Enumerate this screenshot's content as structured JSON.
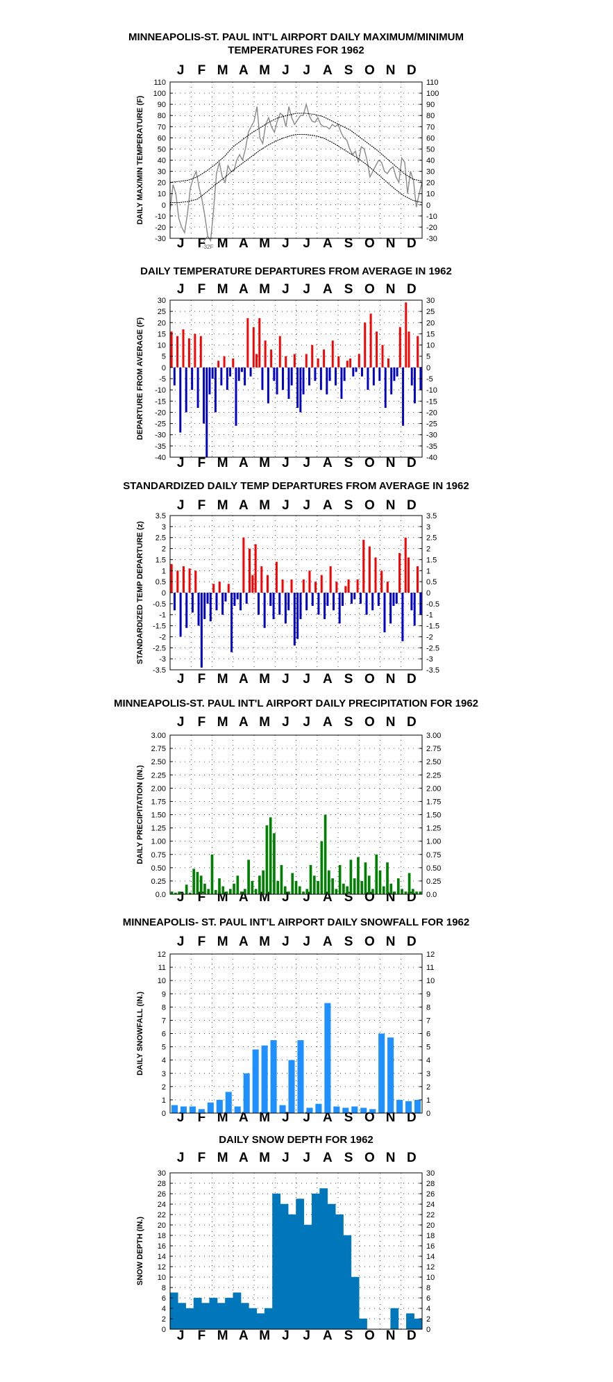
{
  "months": [
    "J",
    "F",
    "M",
    "A",
    "M",
    "J",
    "J",
    "A",
    "S",
    "O",
    "N",
    "D"
  ],
  "chart_data": [
    {
      "type": "line",
      "title_lines": [
        "MINNEAPOLIS-ST. PAUL INT'L AIRPORT DAILY MAXIMUM/MINIMUM",
        "TEMPERATURES FOR 1962"
      ],
      "ylabel": "DAILY MAX/MIN TEMPERATURE (F)",
      "ylim": [
        -30,
        110
      ],
      "yticks": [
        -30,
        -20,
        -10,
        0,
        10,
        20,
        30,
        40,
        50,
        60,
        70,
        80,
        90,
        100,
        110
      ],
      "annotation": "-32F",
      "series": [
        {
          "name": "",
          "values": [
            -5,
            18,
            10,
            -12,
            -20,
            -25,
            -8,
            15,
            24,
            30,
            16,
            5,
            -10,
            -28,
            -32,
            -5,
            28,
            38,
            25,
            20,
            35,
            30,
            30,
            40,
            45,
            40,
            50,
            65,
            70,
            75,
            88,
            60,
            55,
            72,
            78,
            70,
            65,
            75,
            82,
            80,
            70,
            88,
            78,
            72,
            76,
            80,
            80,
            90,
            80,
            75,
            74,
            78,
            72,
            70,
            70,
            68,
            72,
            70,
            72,
            65,
            60,
            58,
            50,
            45,
            48,
            38,
            52,
            50,
            40,
            25,
            30,
            35,
            40,
            38,
            30,
            28,
            32,
            34,
            25,
            20,
            42,
            38,
            10,
            30,
            22,
            -2,
            10,
            20
          ]
        },
        {
          "name": "normal-max",
          "values": [
            20,
            21,
            22,
            25,
            30,
            36,
            43,
            52,
            58,
            64,
            69,
            74,
            78,
            80,
            82,
            82,
            81,
            79,
            75,
            71,
            67,
            61,
            55,
            49,
            42,
            35,
            28,
            23,
            21
          ]
        },
        {
          "name": "normal-min",
          "values": [
            2,
            2,
            3,
            5,
            11,
            18,
            24,
            31,
            37,
            43,
            49,
            54,
            58,
            61,
            63,
            63,
            62,
            60,
            56,
            51,
            46,
            41,
            35,
            28,
            21,
            14,
            8,
            4,
            2
          ]
        }
      ]
    },
    {
      "type": "bar",
      "title": "DAILY TEMPERATURE DEPARTURES FROM AVERAGE IN 1962",
      "ylabel": "DEPARTURE FROM AVERAGE (F)",
      "ylim": [
        -40,
        30
      ],
      "yticks": [
        -40,
        -35,
        -30,
        -25,
        -20,
        -15,
        -10,
        -5,
        0,
        5,
        10,
        15,
        20,
        25,
        30
      ],
      "colors": {
        "positive": "#ff0000",
        "negative": "#0000cc"
      },
      "values": [
        16,
        -8,
        14,
        -29,
        17,
        -20,
        13,
        -10,
        15,
        -18,
        14,
        -25,
        -40,
        -12,
        -5,
        -20,
        3,
        -8,
        5,
        -10,
        -4,
        4,
        -26,
        -6,
        -2,
        -8,
        22,
        -4,
        18,
        6,
        22,
        -10,
        12,
        -16,
        8,
        -6,
        -12,
        14,
        -10,
        5,
        -14,
        -8,
        6,
        -18,
        -20,
        -12,
        6,
        -8,
        10,
        -6,
        4,
        -10,
        8,
        -12,
        -6,
        12,
        -8,
        5,
        -14,
        -6,
        3,
        4,
        -4,
        -2,
        6,
        -4,
        20,
        -10,
        24,
        -8,
        16,
        -6,
        10,
        -18,
        4,
        -12,
        -6,
        -4,
        18,
        -26,
        29,
        16,
        -8,
        -16,
        14,
        -10
      ]
    },
    {
      "type": "bar",
      "title": "STANDARDIZED DAILY TEMP DEPARTURES FROM AVERAGE IN 1962",
      "ylabel": "STANDARDIZED TEMP DEPARTURE (z)",
      "ylim": [
        -3.5,
        3.5
      ],
      "yticks": [
        -3.5,
        -3.0,
        -2.5,
        -2.0,
        -1.5,
        -1.0,
        -0.5,
        0.0,
        0.5,
        1.0,
        1.5,
        2.0,
        2.5,
        3.0,
        3.5
      ],
      "colors": {
        "positive": "#ff0000",
        "negative": "#0000cc"
      },
      "values": [
        1.3,
        -0.8,
        1.0,
        -2.0,
        1.2,
        -1.6,
        1.1,
        -0.9,
        1.0,
        -1.5,
        -3.4,
        -1.2,
        -0.5,
        -1.3,
        0.4,
        -0.8,
        0.5,
        -1.0,
        -0.4,
        0.4,
        -2.7,
        -0.6,
        -0.3,
        -0.8,
        2.5,
        -0.5,
        2.0,
        0.8,
        2.2,
        -1.0,
        1.2,
        -1.6,
        0.8,
        -0.6,
        -1.2,
        1.4,
        -1.0,
        0.6,
        -1.4,
        -0.8,
        0.6,
        -2.4,
        -2.1,
        -1.2,
        0.6,
        -0.8,
        1.0,
        -0.6,
        0.5,
        -1.0,
        0.8,
        -1.2,
        -0.6,
        1.2,
        -0.8,
        0.5,
        -1.4,
        -0.6,
        0.3,
        0.6,
        -0.5,
        -0.3,
        0.6,
        -0.5,
        2.4,
        -1.0,
        2.1,
        -0.8,
        1.6,
        -0.6,
        1.0,
        -1.8,
        0.5,
        -1.4,
        -0.6,
        -0.5,
        1.8,
        -2.2,
        2.5,
        1.6,
        -0.8,
        -1.5,
        1.2,
        -1.0
      ]
    },
    {
      "type": "bar",
      "title": "MINNEAPOLIS-ST. PAUL INT'L AIRPORT DAILY PRECIPITATION FOR 1962",
      "ylabel": "DAILY PRECIPITATION (IN.)",
      "ylim": [
        0,
        3.0
      ],
      "yticks": [
        "0.0",
        "0.25",
        "0.50",
        "0.75",
        "1.00",
        "1.25",
        "1.50",
        "1.75",
        "2.00",
        "2.25",
        "2.50",
        "2.75",
        "3.00"
      ],
      "colors": {
        "bars": "#008000"
      },
      "values": [
        0.05,
        0.03,
        0.05,
        0.02,
        0.18,
        0.03,
        0.48,
        0.42,
        0.35,
        0.2,
        0.1,
        0.75,
        0.08,
        0.3,
        0.15,
        0.05,
        0.1,
        0.2,
        0.35,
        0.05,
        0.1,
        0.65,
        0.25,
        0.1,
        0.35,
        0.45,
        1.3,
        1.45,
        1.15,
        0.25,
        0.55,
        0.15,
        0.05,
        0.4,
        0.25,
        0.15,
        0.05,
        0.1,
        0.55,
        0.35,
        0.25,
        1.0,
        1.5,
        0.45,
        0.3,
        0.1,
        0.55,
        0.2,
        0.15,
        0.65,
        0.3,
        0.7,
        0.25,
        0.6,
        0.35,
        0.1,
        0.75,
        0.45,
        0.15,
        0.6,
        0.2,
        0.05,
        0.3,
        0.1,
        0.05,
        0.4,
        0.1,
        0.05,
        0.05
      ]
    },
    {
      "type": "bar",
      "title": "MINNEAPOLIS- ST. PAUL INT'L AIRPORT DAILY SNOWFALL FOR 1962",
      "ylabel": "DAILY SNOWFALL (IN.)",
      "ylim": [
        0,
        12
      ],
      "yticks": [
        0,
        1,
        2,
        3,
        4,
        5,
        6,
        7,
        8,
        9,
        10,
        11,
        12
      ],
      "colors": {
        "bars": "#1e90ff"
      },
      "values": [
        0.6,
        0.5,
        0.5,
        0.3,
        0.8,
        1.0,
        1.6,
        0.5,
        3.0,
        4.8,
        5.1,
        5.5,
        0.6,
        4.0,
        5.5,
        0.4,
        0.7,
        8.3,
        0.5,
        0.4,
        0.5,
        0.4,
        0.3,
        6.0,
        5.7,
        1.0,
        0.9,
        1.0
      ]
    },
    {
      "type": "area",
      "title": "DAILY SNOW DEPTH FOR 1962",
      "ylabel": "SNOW DEPTH (IN.)",
      "ylim": [
        0,
        30
      ],
      "yticks": [
        0,
        2,
        4,
        6,
        8,
        10,
        12,
        14,
        16,
        18,
        20,
        22,
        24,
        26,
        28,
        30
      ],
      "colors": {
        "fill": "#0077bb"
      },
      "values": [
        7,
        5,
        4,
        6,
        5,
        6,
        5,
        6,
        7,
        5,
        4,
        3,
        4,
        26,
        24,
        22,
        25,
        20,
        26,
        27,
        24,
        22,
        18,
        10,
        2,
        0,
        0,
        0,
        4,
        0,
        3,
        2
      ]
    }
  ]
}
